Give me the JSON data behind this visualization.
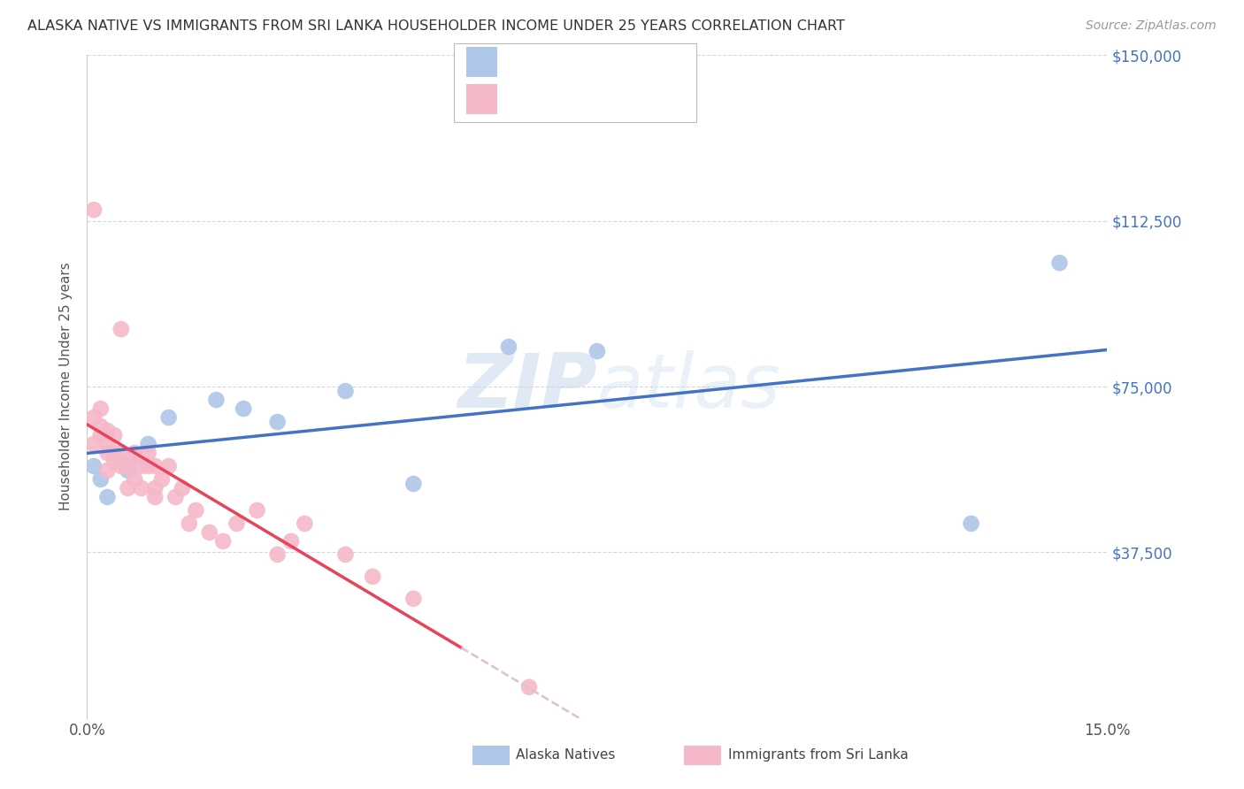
{
  "title": "ALASKA NATIVE VS IMMIGRANTS FROM SRI LANKA HOUSEHOLDER INCOME UNDER 25 YEARS CORRELATION CHART",
  "source": "Source: ZipAtlas.com",
  "ylabel": "Householder Income Under 25 years",
  "xlim": [
    0.0,
    0.15
  ],
  "ylim": [
    0,
    150000
  ],
  "yticks": [
    0,
    37500,
    75000,
    112500,
    150000
  ],
  "ytick_labels": [
    "",
    "$37,500",
    "$75,000",
    "$112,500",
    "$150,000"
  ],
  "xticks": [
    0.0,
    0.05,
    0.1,
    0.15
  ],
  "xtick_labels": [
    "0.0%",
    "",
    "",
    "15.0%"
  ],
  "alaska_color": "#aec6e8",
  "srilanka_color": "#f5b8c8",
  "alaska_line_color": "#4472c4",
  "srilanka_line_color": "#e8435a",
  "srilanka_line_ext_color": "#dfc0cc",
  "watermark_zip": "ZIP",
  "watermark_atlas": "atlas",
  "background_color": "#ffffff",
  "grid_color": "#d8d8d8",
  "alaska_x": [
    0.001,
    0.002,
    0.003,
    0.005,
    0.006,
    0.007,
    0.009,
    0.012,
    0.019,
    0.023,
    0.028,
    0.038,
    0.048,
    0.062,
    0.075,
    0.13,
    0.143
  ],
  "alaska_y": [
    57000,
    54000,
    50000,
    58000,
    56000,
    59000,
    62000,
    68000,
    72000,
    70000,
    67000,
    74000,
    53000,
    84000,
    83000,
    44000,
    103000
  ],
  "srilanka_x": [
    0.001,
    0.001,
    0.001,
    0.002,
    0.002,
    0.002,
    0.003,
    0.003,
    0.003,
    0.003,
    0.004,
    0.004,
    0.004,
    0.005,
    0.005,
    0.005,
    0.006,
    0.006,
    0.007,
    0.007,
    0.008,
    0.008,
    0.009,
    0.009,
    0.01,
    0.01,
    0.01,
    0.011,
    0.012,
    0.013,
    0.014,
    0.015,
    0.016,
    0.018,
    0.02,
    0.022,
    0.025,
    0.028,
    0.03,
    0.032,
    0.038,
    0.042,
    0.048,
    0.065
  ],
  "srilanka_y": [
    115000,
    68000,
    62000,
    70000,
    66000,
    64000,
    62000,
    65000,
    60000,
    56000,
    60000,
    64000,
    58000,
    57000,
    60000,
    88000,
    57000,
    52000,
    54000,
    60000,
    52000,
    57000,
    60000,
    57000,
    57000,
    52000,
    50000,
    54000,
    57000,
    50000,
    52000,
    44000,
    47000,
    42000,
    40000,
    44000,
    47000,
    37000,
    40000,
    44000,
    37000,
    32000,
    27000,
    7000
  ]
}
